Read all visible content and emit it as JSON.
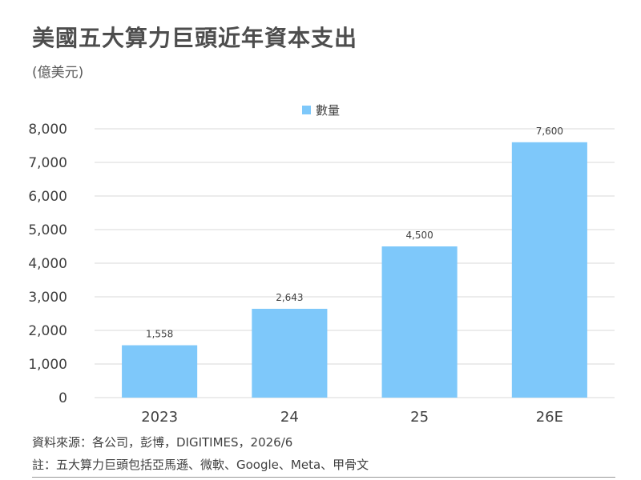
{
  "title": "美國五大算力巨頭近年資本支出",
  "subtitle": "(億美元)",
  "source": "資料來源：各公司，彭博，DIGITIMES，2026/6",
  "note": "註：五大算力巨頭包括亞馬遜、微軟、Google、Meta、甲骨文",
  "colors": {
    "bar": "#7ec8fa",
    "grid": "#d9d9d9",
    "axis_text": "#404040",
    "label_text": "#404040"
  },
  "chart_data": {
    "type": "bar",
    "categories": [
      "2023",
      "24",
      "25",
      "26E"
    ],
    "series": [
      {
        "name": "數量",
        "values": [
          1558,
          2643,
          4500,
          7600
        ]
      }
    ],
    "data_labels": [
      "1,558",
      "2,643",
      "4,500",
      "7,600"
    ],
    "ylim": [
      0,
      8000
    ],
    "yticks": [
      0,
      1000,
      2000,
      3000,
      4000,
      5000,
      6000,
      7000,
      8000
    ],
    "ytick_labels": [
      "0",
      "1,000",
      "2,000",
      "3,000",
      "4,000",
      "5,000",
      "6,000",
      "7,000",
      "8,000"
    ],
    "grid": true,
    "legend_position": "top-center"
  }
}
